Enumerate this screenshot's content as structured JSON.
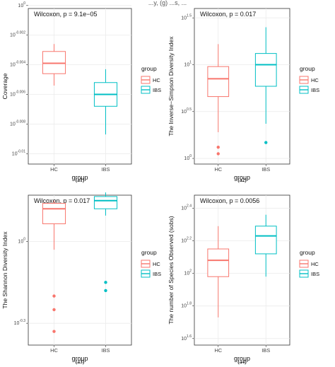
{
  "header_text": "...y, (g) ...s, ...",
  "legend": {
    "title": "group",
    "items": [
      {
        "label": "HC",
        "color": "#F8766D"
      },
      {
        "label": "IBS",
        "color": "#00BFC4"
      }
    ]
  },
  "chart_data": [
    {
      "type": "box",
      "panel_label": "(a1)",
      "title": "Wilcoxon, p = 9.1e−05",
      "xlabel": "group",
      "ylabel": "Coverage",
      "log_scale": true,
      "ylim": [
        -0.0107,
        -0.0002
      ],
      "yticks": [
        {
          "value": 0,
          "label": "10^0"
        },
        {
          "value": -0.002,
          "label": "10^-0.002"
        },
        {
          "value": -0.004,
          "label": "10^-0.004"
        },
        {
          "value": -0.006,
          "label": "10^-0.006"
        },
        {
          "value": -0.008,
          "label": "10^-0.008"
        },
        {
          "value": -0.01,
          "label": "10^-0.01"
        }
      ],
      "categories": [
        "HC",
        "IBS"
      ],
      "series": [
        {
          "name": "HC",
          "color": "#F8766D",
          "whisker_low": -0.0054,
          "q1": -0.0046,
          "median": -0.0039,
          "q3": -0.0031,
          "whisker_high": -0.0026,
          "outliers": []
        },
        {
          "name": "IBS",
          "color": "#00BFC4",
          "whisker_low": -0.0087,
          "q1": -0.0068,
          "median": -0.006,
          "q3": -0.0052,
          "whisker_high": -0.0043,
          "outliers": []
        }
      ],
      "grid": true,
      "legend_position": "right"
    },
    {
      "type": "box",
      "panel_label": "(a2)",
      "title": "Wilcoxon, p = 0.017",
      "xlabel": "group",
      "ylabel": "The Inverse−Simpson Diversity Index",
      "log_scale": true,
      "ylim": [
        -0.06,
        1.6
      ],
      "yticks": [
        {
          "value": 0,
          "label": "10^0"
        },
        {
          "value": 0.5,
          "label": "10^0.5"
        },
        {
          "value": 1,
          "label": "10^1"
        },
        {
          "value": 1.5,
          "label": "10^1.5"
        }
      ],
      "categories": [
        "HC",
        "IBS"
      ],
      "series": [
        {
          "name": "HC",
          "color": "#F8766D",
          "whisker_low": 0.28,
          "q1": 0.66,
          "median": 0.85,
          "q3": 0.98,
          "whisker_high": 1.22,
          "outliers": [
            0.12,
            0.05
          ]
        },
        {
          "name": "IBS",
          "color": "#00BFC4",
          "whisker_low": 0.37,
          "q1": 0.77,
          "median": 1.0,
          "q3": 1.12,
          "whisker_high": 1.4,
          "outliers": [
            0.17
          ]
        }
      ],
      "grid": true,
      "legend_position": "right"
    },
    {
      "type": "box",
      "panel_label": "(a3)",
      "title": "Wilcoxon, p = 0.017",
      "xlabel": "group",
      "ylabel": "The Shannon Diversity Index",
      "log_scale": true,
      "ylim": [
        -0.38,
        0.17
      ],
      "yticks": [
        {
          "value": 0,
          "label": "10^0"
        },
        {
          "value": -0.3,
          "label": "10^-0.3"
        }
      ],
      "categories": [
        "HC",
        "IBS"
      ],
      "series": [
        {
          "name": "HC",
          "color": "#F8766D",
          "whisker_low": -0.03,
          "q1": 0.065,
          "median": 0.12,
          "q3": 0.14,
          "whisker_high": 0.15,
          "outliers": [
            -0.2,
            -0.25,
            -0.33
          ]
        },
        {
          "name": "IBS",
          "color": "#00BFC4",
          "whisker_low": 0.095,
          "q1": 0.12,
          "median": 0.15,
          "q3": 0.165,
          "whisker_high": 0.18,
          "outliers": [
            -0.15,
            -0.18
          ]
        }
      ],
      "grid": true,
      "legend_position": "right"
    },
    {
      "type": "box",
      "panel_label": "(a4)",
      "title": "Wilcoxon, p = 0.0056",
      "xlabel": "group",
      "ylabel": "The number of Species Observed (sobs)",
      "log_scale": true,
      "ylim": [
        1.56,
        2.48
      ],
      "yticks": [
        {
          "value": 1.6,
          "label": "10^1.6"
        },
        {
          "value": 1.8,
          "label": "10^1.8"
        },
        {
          "value": 2,
          "label": "10^2"
        },
        {
          "value": 2.2,
          "label": "10^2.2"
        },
        {
          "value": 2.4,
          "label": "10^2.4"
        }
      ],
      "categories": [
        "HC",
        "IBS"
      ],
      "series": [
        {
          "name": "HC",
          "color": "#F8766D",
          "whisker_low": 1.73,
          "q1": 1.98,
          "median": 2.08,
          "q3": 2.15,
          "whisker_high": 2.29,
          "outliers": []
        },
        {
          "name": "IBS",
          "color": "#00BFC4",
          "whisker_low": 1.98,
          "q1": 2.12,
          "median": 2.23,
          "q3": 2.29,
          "whisker_high": 2.36,
          "outliers": []
        }
      ],
      "grid": true,
      "legend_position": "right"
    }
  ]
}
